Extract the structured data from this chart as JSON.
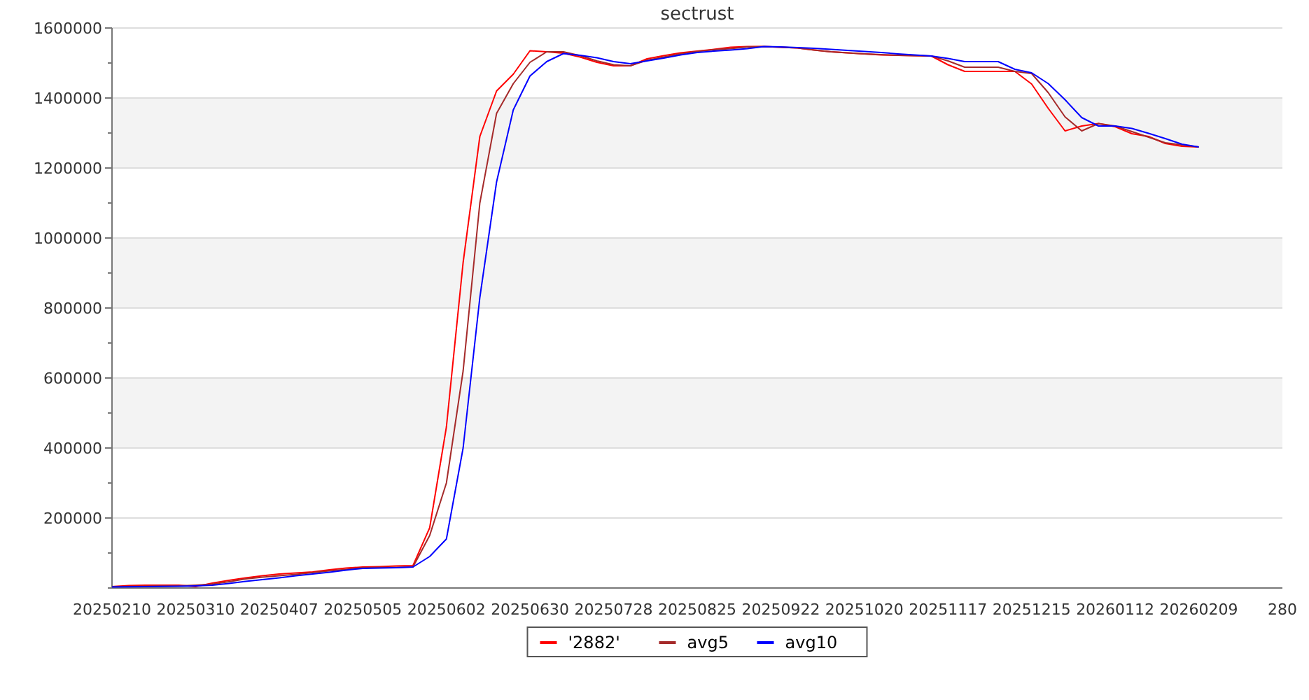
{
  "chart_data": {
    "type": "line",
    "title": "sectrust",
    "categories": [
      "20250210",
      null,
      null,
      null,
      null,
      "20250310",
      null,
      null,
      null,
      null,
      "20250407",
      null,
      null,
      null,
      null,
      "20250505",
      null,
      null,
      null,
      null,
      "20250602",
      null,
      null,
      null,
      null,
      "20250630",
      null,
      null,
      null,
      null,
      "20250728",
      null,
      null,
      null,
      null,
      "20250825",
      null,
      null,
      null,
      null,
      "20250922",
      null,
      null,
      null,
      null,
      "20251020",
      null,
      null,
      null,
      null,
      "20251117",
      null,
      null,
      null,
      null,
      "20251215",
      null,
      null,
      null,
      null,
      "20260112",
      null,
      null,
      null,
      null,
      "20260209",
      null,
      null,
      null,
      null,
      "280"
    ],
    "ylim": [
      0,
      1600000
    ],
    "yticks": [
      {
        "value": 0,
        "label": null
      },
      {
        "value": 100000,
        "label": null
      },
      200000,
      {
        "value": 300000,
        "label": null
      },
      400000,
      {
        "value": 500000,
        "label": null
      },
      600000,
      {
        "value": 700000,
        "label": null
      },
      800000,
      {
        "value": 900000,
        "label": null
      },
      1000000,
      {
        "value": 1100000,
        "label": null
      },
      1200000,
      {
        "value": 1300000,
        "label": null
      },
      1400000,
      {
        "value": 1500000,
        "label": null
      },
      1600000
    ],
    "grid": "y",
    "legend": "bottom",
    "line_style": "solid",
    "marker": "none",
    "series": [
      {
        "name": "'2882'",
        "color": "#ff0000",
        "values": [
          4000,
          7000,
          8000,
          8000,
          8000,
          4000,
          14000,
          22000,
          29000,
          35000,
          40000,
          43000,
          46000,
          52000,
          57000,
          60000,
          61000,
          63000,
          64000,
          172000,
          460000,
          930000,
          1290000,
          1420000,
          1468000,
          1535000,
          1532000,
          1528000,
          1517000,
          1502000,
          1492000,
          1492000,
          1512000,
          1521000,
          1529000,
          1534000,
          1539000,
          1545000,
          1547000,
          1547000,
          1545000,
          1543000,
          1537000,
          1532000,
          1529000,
          1526000,
          1523000,
          1522000,
          1521000,
          1520000,
          1495000,
          1476000,
          1476000,
          1476000,
          1476000,
          1440000,
          1370000,
          1306000,
          1320000,
          1327000,
          1318000,
          1298000,
          1290000,
          1270000,
          1262000,
          1260000,
          null,
          null,
          null,
          null,
          null
        ]
      },
      {
        "name": "avg5",
        "color": "#a52a2a",
        "values": [
          4000,
          4500,
          5000,
          5500,
          6000,
          8000,
          11000,
          18000,
          26000,
          31000,
          35000,
          39000,
          44000,
          49000,
          53000,
          58000,
          59000,
          59000,
          60000,
          150000,
          300000,
          620000,
          1100000,
          1356000,
          1441000,
          1502000,
          1532000,
          1532000,
          1521000,
          1506000,
          1495000,
          1492000,
          1508000,
          1517000,
          1526000,
          1533000,
          1538000,
          1541000,
          1546000,
          1547000,
          1545000,
          1543000,
          1537000,
          1532000,
          1529000,
          1526000,
          1524000,
          1522000,
          1521000,
          1520000,
          1506000,
          1488000,
          1488000,
          1488000,
          1476000,
          1470000,
          1415000,
          1346000,
          1306000,
          1327000,
          1320000,
          1304000,
          1288000,
          1272000,
          1266000,
          1260000,
          null,
          null,
          null,
          null,
          null
        ]
      },
      {
        "name": "avg10",
        "color": "#0000ff",
        "values": [
          3000,
          3500,
          4000,
          4500,
          5000,
          6000,
          8000,
          13000,
          19000,
          24000,
          29000,
          35000,
          40000,
          45000,
          51000,
          56000,
          57000,
          58000,
          60000,
          90000,
          140000,
          400000,
          830000,
          1160000,
          1366000,
          1463000,
          1504000,
          1527000,
          1522000,
          1515000,
          1504000,
          1498000,
          1506000,
          1514000,
          1523000,
          1530000,
          1534000,
          1537000,
          1541000,
          1547000,
          1546000,
          1544000,
          1542000,
          1539000,
          1536000,
          1533000,
          1530000,
          1526000,
          1523000,
          1520000,
          1513000,
          1504000,
          1504000,
          1504000,
          1482000,
          1472000,
          1441000,
          1395000,
          1344000,
          1320000,
          1320000,
          1313000,
          1299000,
          1284000,
          1268000,
          1260000,
          null,
          null,
          null,
          null,
          null
        ]
      }
    ]
  }
}
